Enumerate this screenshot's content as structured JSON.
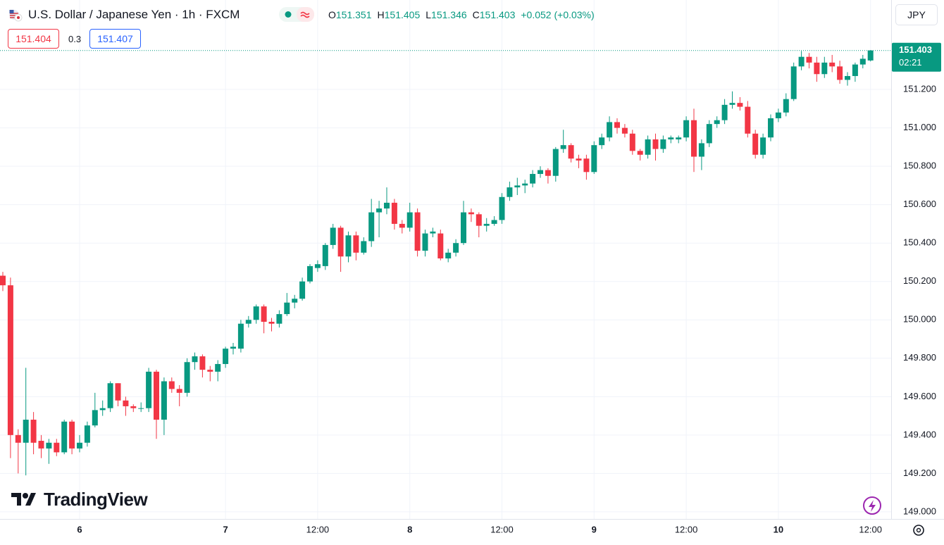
{
  "header": {
    "title": "U.S. Dollar / Japanese Yen · 1h · FXCM",
    "ohlc": [
      {
        "label": "O",
        "value": "151.351"
      },
      {
        "label": "H",
        "value": "151.405"
      },
      {
        "label": "L",
        "value": "151.346"
      },
      {
        "label": "C",
        "value": "151.403"
      }
    ],
    "change": "+0.052 (+0.03%)",
    "bid": "151.404",
    "spread": "0.3",
    "ask": "151.407",
    "currency": "JPY"
  },
  "logo": "TradingView",
  "chart_data": {
    "type": "candlestick",
    "up_color": "#089981",
    "down_color": "#f23645",
    "grid": true,
    "last_price": 151.403,
    "countdown": "02:21",
    "ylim": [
      148.963,
      151.666
    ],
    "yticks": [
      {
        "value": 149.0,
        "label": "149.000"
      },
      {
        "value": 149.2,
        "label": "149.200"
      },
      {
        "value": 149.4,
        "label": "149.400"
      },
      {
        "value": 149.6,
        "label": "149.600"
      },
      {
        "value": 149.8,
        "label": "149.800"
      },
      {
        "value": 150.0,
        "label": "150.000"
      },
      {
        "value": 150.2,
        "label": "150.200"
      },
      {
        "value": 150.4,
        "label": "150.400"
      },
      {
        "value": 150.6,
        "label": "150.600"
      },
      {
        "value": 150.8,
        "label": "150.800"
      },
      {
        "value": 151.0,
        "label": "151.000"
      },
      {
        "value": 151.2,
        "label": "151.200"
      }
    ],
    "categories": [
      null,
      null,
      null,
      null,
      null,
      null,
      null,
      null,
      null,
      null,
      "6",
      null,
      null,
      null,
      null,
      null,
      null,
      null,
      null,
      null,
      null,
      null,
      null,
      null,
      null,
      null,
      null,
      null,
      null,
      "7",
      null,
      null,
      null,
      null,
      null,
      null,
      null,
      null,
      null,
      null,
      null,
      "12:00",
      null,
      null,
      null,
      null,
      null,
      null,
      null,
      null,
      null,
      null,
      null,
      "8",
      null,
      null,
      null,
      null,
      null,
      null,
      null,
      null,
      null,
      null,
      null,
      "12:00",
      null,
      null,
      null,
      null,
      null,
      null,
      null,
      null,
      null,
      null,
      null,
      "9",
      null,
      null,
      null,
      null,
      null,
      null,
      null,
      null,
      null,
      null,
      null,
      "12:00",
      null,
      null,
      null,
      null,
      null,
      null,
      null,
      null,
      null,
      null,
      null,
      "10",
      null,
      null,
      null,
      null,
      null,
      null,
      null,
      null,
      null,
      null,
      null,
      "12:00"
    ],
    "open": [
      150.23,
      150.18,
      149.4,
      149.36,
      149.48,
      149.37,
      149.33,
      149.36,
      149.31,
      149.47,
      149.33,
      149.36,
      149.45,
      149.53,
      149.54,
      149.67,
      149.58,
      149.55,
      149.54,
      149.54,
      149.73,
      149.48,
      149.68,
      149.64,
      149.62,
      149.78,
      149.81,
      149.74,
      149.73,
      149.77,
      149.85,
      149.85,
      149.98,
      150.0,
      150.07,
      149.99,
      149.98,
      150.03,
      150.09,
      150.11,
      150.2,
      150.27,
      150.28,
      150.39,
      150.48,
      150.33,
      150.44,
      150.35,
      150.41,
      150.56,
      150.58,
      150.61,
      150.5,
      150.48,
      150.56,
      150.36,
      150.45,
      150.45,
      150.32,
      150.35,
      150.4,
      150.56,
      150.55,
      150.49,
      150.5,
      150.52,
      150.64,
      150.69,
      150.7,
      150.71,
      150.76,
      150.78,
      150.75,
      150.89,
      150.91,
      150.84,
      150.84,
      150.77,
      150.91,
      150.95,
      151.03,
      151.0,
      150.97,
      150.88,
      150.86,
      150.94,
      150.89,
      150.94,
      150.94,
      150.95,
      151.04,
      150.85,
      150.92,
      151.02,
      151.04,
      151.12,
      151.13,
      151.11,
      150.97,
      150.86,
      150.95,
      151.05,
      151.08,
      151.15,
      151.32,
      151.37,
      151.34,
      151.28,
      151.34,
      151.32,
      151.25,
      151.27,
      151.33,
      151.351
    ],
    "high": [
      150.25,
      150.22,
      149.43,
      149.75,
      149.52,
      149.4,
      149.38,
      149.38,
      149.48,
      149.48,
      149.4,
      149.47,
      149.62,
      149.58,
      149.68,
      149.67,
      149.6,
      149.56,
      149.57,
      149.75,
      149.74,
      149.7,
      149.7,
      149.66,
      149.8,
      149.83,
      149.82,
      149.76,
      149.79,
      149.86,
      149.88,
      150.0,
      150.02,
      150.08,
      150.08,
      150.01,
      150.05,
      150.14,
      150.13,
      150.22,
      150.29,
      150.31,
      150.4,
      150.5,
      150.49,
      150.46,
      150.46,
      150.43,
      150.63,
      150.62,
      150.69,
      150.63,
      150.52,
      150.61,
      150.58,
      150.47,
      150.48,
      150.47,
      150.37,
      150.42,
      150.62,
      150.58,
      150.56,
      150.53,
      150.54,
      150.66,
      150.72,
      150.74,
      150.73,
      150.78,
      150.8,
      150.79,
      150.9,
      150.99,
      150.92,
      150.86,
      150.86,
      150.93,
      150.97,
      151.06,
      151.05,
      151.02,
      150.99,
      150.89,
      150.96,
      150.97,
      150.96,
      150.96,
      150.96,
      151.06,
      151.1,
      150.94,
      151.04,
      151.06,
      151.15,
      151.19,
      151.16,
      151.14,
      150.99,
      150.97,
      151.07,
      151.1,
      151.18,
      151.34,
      151.4,
      151.39,
      151.37,
      151.37,
      151.38,
      151.35,
      151.29,
      151.34,
      151.38,
      151.405
    ],
    "low": [
      150.15,
      149.28,
      149.2,
      149.19,
      149.3,
      149.28,
      149.25,
      149.29,
      149.3,
      149.3,
      149.31,
      149.34,
      149.44,
      149.5,
      149.52,
      149.55,
      149.5,
      149.52,
      149.52,
      149.52,
      149.38,
      149.4,
      149.62,
      149.55,
      149.6,
      149.74,
      149.7,
      149.68,
      149.68,
      149.75,
      149.82,
      149.83,
      149.96,
      149.98,
      149.93,
      149.94,
      149.96,
      150.02,
      150.06,
      150.1,
      150.19,
      150.25,
      150.26,
      150.37,
      150.25,
      150.3,
      150.31,
      150.34,
      150.38,
      150.43,
      150.55,
      150.47,
      150.45,
      150.46,
      150.33,
      150.33,
      150.43,
      150.31,
      150.3,
      150.33,
      150.39,
      150.51,
      150.43,
      150.46,
      150.49,
      150.5,
      150.62,
      150.65,
      150.66,
      150.69,
      150.74,
      150.71,
      150.72,
      150.87,
      150.82,
      150.79,
      150.73,
      150.76,
      150.89,
      150.93,
      150.97,
      150.95,
      150.86,
      150.83,
      150.84,
      150.83,
      150.87,
      150.92,
      150.92,
      150.93,
      150.77,
      150.78,
      150.9,
      151.0,
      151.02,
      151.1,
      151.09,
      150.95,
      150.84,
      150.84,
      150.93,
      151.03,
      151.06,
      151.14,
      151.3,
      151.31,
      151.24,
      151.26,
      151.29,
      151.23,
      151.22,
      151.24,
      151.31,
      151.346
    ],
    "close": [
      150.18,
      149.4,
      149.36,
      149.48,
      149.36,
      149.33,
      149.36,
      149.31,
      149.47,
      149.33,
      149.36,
      149.45,
      149.53,
      149.54,
      149.67,
      149.58,
      149.55,
      149.54,
      149.54,
      149.73,
      149.48,
      149.68,
      149.64,
      149.62,
      149.78,
      149.81,
      149.74,
      149.73,
      149.77,
      149.85,
      149.86,
      149.98,
      150.0,
      150.07,
      149.99,
      149.98,
      150.03,
      150.09,
      150.11,
      150.2,
      150.28,
      150.29,
      150.39,
      150.48,
      150.33,
      150.44,
      150.35,
      150.41,
      150.56,
      150.58,
      150.61,
      150.5,
      150.48,
      150.56,
      150.36,
      150.45,
      150.46,
      150.32,
      150.35,
      150.4,
      150.56,
      150.55,
      150.49,
      150.5,
      150.52,
      150.64,
      150.69,
      150.7,
      150.71,
      150.76,
      150.78,
      150.75,
      150.89,
      150.91,
      150.84,
      150.83,
      150.77,
      150.91,
      150.95,
      151.03,
      151.0,
      150.97,
      150.88,
      150.86,
      150.94,
      150.89,
      150.94,
      150.95,
      150.95,
      151.04,
      150.85,
      150.92,
      151.02,
      151.04,
      151.12,
      151.13,
      151.11,
      150.97,
      150.86,
      150.95,
      151.05,
      151.08,
      151.15,
      151.32,
      151.37,
      151.34,
      151.28,
      151.34,
      151.32,
      151.25,
      151.27,
      151.33,
      151.36,
      151.403
    ]
  }
}
